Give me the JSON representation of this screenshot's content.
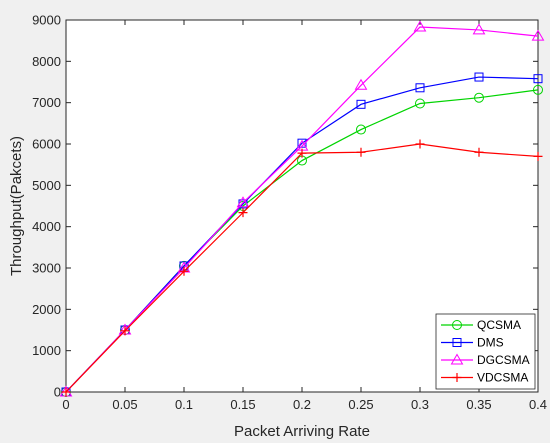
{
  "chart_data": {
    "type": "line",
    "title": "",
    "xlabel": "Packet Arriving Rate",
    "ylabel": "Throughput(Pakcets)",
    "x": [
      0,
      0.05,
      0.1,
      0.15,
      0.2,
      0.25,
      0.3,
      0.35,
      0.4
    ],
    "xlim": [
      0,
      0.4
    ],
    "ylim": [
      0,
      9000
    ],
    "x_ticks": [
      "0",
      "0.05",
      "0.1",
      "0.15",
      "0.2",
      "0.25",
      "0.3",
      "0.35",
      "0.4"
    ],
    "y_ticks": [
      "0",
      "1000",
      "2000",
      "3000",
      "4000",
      "5000",
      "6000",
      "7000",
      "8000",
      "9000"
    ],
    "grid": false,
    "legend_position": "bottom-right",
    "series": [
      {
        "name": "QCSMA",
        "color": "#00d400",
        "marker": "circle",
        "values": [
          0,
          1500,
          3050,
          4500,
          5600,
          6350,
          6980,
          7120,
          7310
        ]
      },
      {
        "name": "DMS",
        "color": "#0000ff",
        "marker": "square",
        "values": [
          0,
          1500,
          3050,
          4550,
          6020,
          6960,
          7360,
          7620,
          7580
        ]
      },
      {
        "name": "DGCSMA",
        "color": "#ff00ff",
        "marker": "triangle",
        "values": [
          0,
          1500,
          3000,
          4580,
          5950,
          7420,
          8830,
          8760,
          8610
        ]
      },
      {
        "name": "VDCSMA",
        "color": "#ff0000",
        "marker": "plus",
        "values": [
          0,
          1480,
          2920,
          4340,
          5780,
          5800,
          6000,
          5800,
          5700
        ]
      }
    ]
  }
}
